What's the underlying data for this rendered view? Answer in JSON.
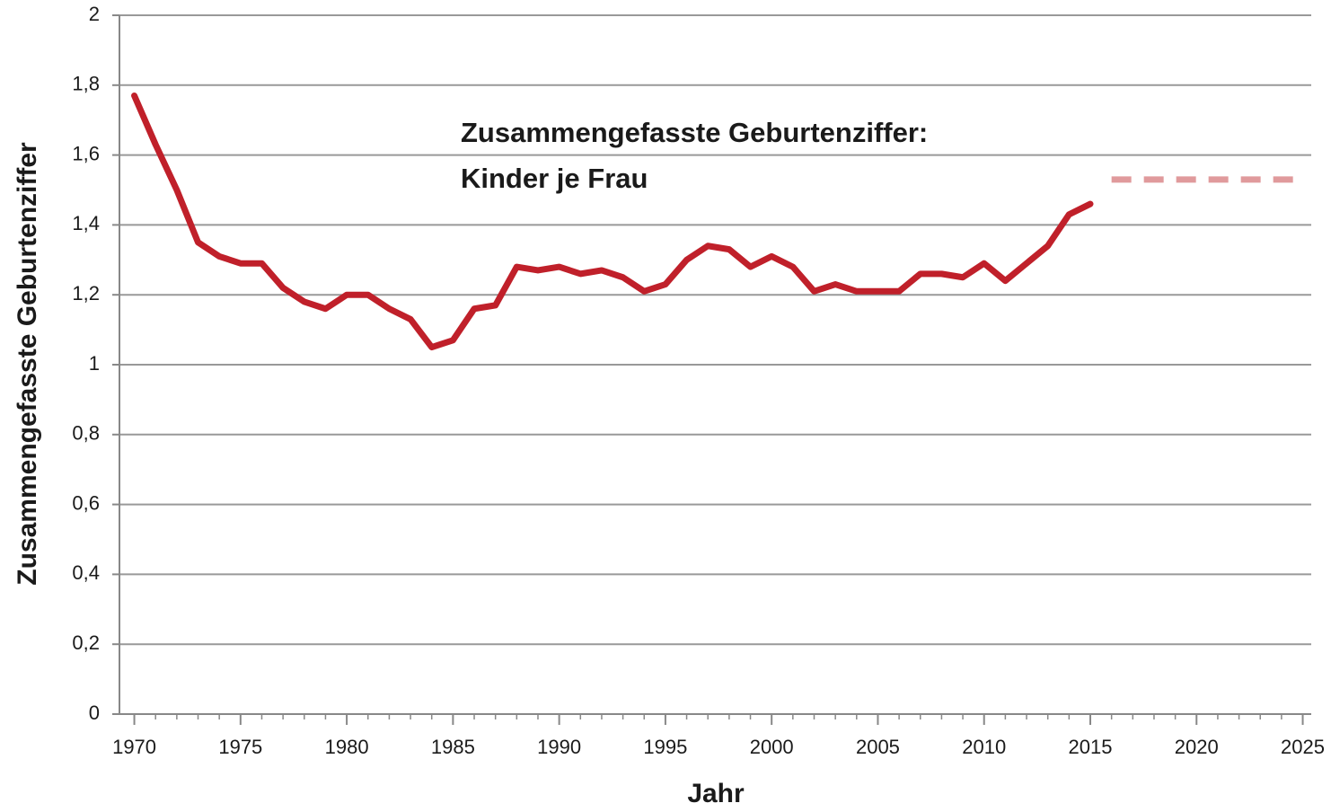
{
  "chart_data": {
    "type": "line",
    "x_label": "Jahr",
    "y_label": "Zusammengefasste Geburtenziffer",
    "annotation": [
      "Zusammengefasste Geburtenziffer:",
      "Kinder je Frau"
    ],
    "series": [
      {
        "color": "#c0202a",
        "dashed": false,
        "x": [
          1970,
          1971,
          1972,
          1973,
          1974,
          1975,
          1976,
          1977,
          1978,
          1979,
          1980,
          1981,
          1982,
          1983,
          1984,
          1985,
          1986,
          1987,
          1988,
          1989,
          1990,
          1991,
          1992,
          1993,
          1994,
          1995,
          1996,
          1997,
          1998,
          1999,
          2000,
          2001,
          2002,
          2003,
          2004,
          2005,
          2006,
          2007,
          2008,
          2009,
          2010,
          2011,
          2012,
          2013,
          2014,
          2015
        ],
        "values": [
          1.77,
          1.63,
          1.5,
          1.35,
          1.31,
          1.29,
          1.29,
          1.22,
          1.18,
          1.16,
          1.2,
          1.2,
          1.16,
          1.13,
          1.05,
          1.07,
          1.16,
          1.17,
          1.28,
          1.27,
          1.28,
          1.26,
          1.27,
          1.25,
          1.21,
          1.23,
          1.3,
          1.34,
          1.33,
          1.28,
          1.31,
          1.28,
          1.21,
          1.23,
          1.21,
          1.21,
          1.21,
          1.26,
          1.26,
          1.25,
          1.29,
          1.24,
          1.29,
          1.34,
          1.43,
          1.46
        ]
      },
      {
        "color": "#e09a9c",
        "dashed": true,
        "x": [
          2016,
          2025
        ],
        "values": [
          1.53,
          1.53
        ]
      }
    ],
    "xlim": [
      1969.3,
      2025.4
    ],
    "xticks": [
      1970,
      1975,
      1980,
      1985,
      1990,
      1995,
      2000,
      2005,
      2010,
      2015,
      2020,
      2025
    ],
    "ylim": [
      0,
      2
    ],
    "yticks": [
      0,
      {
        "value": 0.2,
        "label": "0,2"
      },
      {
        "value": 0.4,
        "label": "0,4"
      },
      {
        "value": 0.6,
        "label": "0,6"
      },
      {
        "value": 0.8,
        "label": "0,8"
      },
      1,
      {
        "value": 1.2,
        "label": "1,2"
      },
      {
        "value": 1.4,
        "label": "1,4"
      },
      {
        "value": 1.6,
        "label": "1,6"
      },
      {
        "value": 1.8,
        "label": "1,8"
      },
      2
    ],
    "grid": true
  }
}
